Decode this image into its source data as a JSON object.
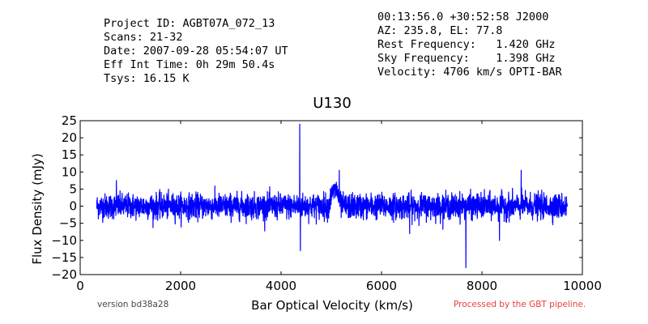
{
  "header": {
    "left_lines": [
      "Project ID: AGBT07A_072_13",
      "Scans: 21-32",
      "Date: 2007-09-28 05:54:07 UT",
      "Eff Int Time: 0h 29m 50.4s",
      "Tsys: 16.15 K"
    ],
    "right_lines": [
      "00:13:56.0 +30:52:58 J2000",
      "AZ: 235.8, EL: 77.8",
      "Rest Frequency:   1.420 GHz",
      "Sky Frequency:    1.398 GHz",
      "Velocity: 4706 km/s OPTI-BAR"
    ]
  },
  "footer": {
    "version": "version bd38a28",
    "pipeline": "Processed by the GBT pipeline."
  },
  "colors": {
    "series": "#0000ff",
    "pipeline_note": "#e8403a"
  },
  "chart_data": {
    "type": "line",
    "title": "U130",
    "xlabel": "Bar Optical Velocity (km/s)",
    "ylabel": "Flux Density (mJy)",
    "xlim": [
      0,
      10000
    ],
    "ylim": [
      -20,
      25
    ],
    "xticks": [
      0,
      2000,
      4000,
      6000,
      8000,
      10000
    ],
    "yticks": [
      -20,
      -15,
      -10,
      -5,
      0,
      5,
      10,
      15,
      20,
      25
    ],
    "grid": false,
    "legend": "none",
    "series": [
      {
        "x_range": [
          330,
          9700
        ],
        "noise_rms": 1.8,
        "features": [
          {
            "x": 720,
            "y": 7.5
          },
          {
            "x": 4370,
            "y": 24.0
          },
          {
            "x": 4385,
            "y": -13.0
          },
          {
            "x": 5000,
            "y": 5.0
          },
          {
            "x": 5100,
            "y": 7.0
          },
          {
            "x": 5160,
            "y": 10.5
          },
          {
            "x": 6560,
            "y": -8.0
          },
          {
            "x": 7680,
            "y": -18.0
          },
          {
            "x": 8350,
            "y": -10.0
          },
          {
            "x": 8780,
            "y": 10.5
          }
        ]
      }
    ]
  }
}
